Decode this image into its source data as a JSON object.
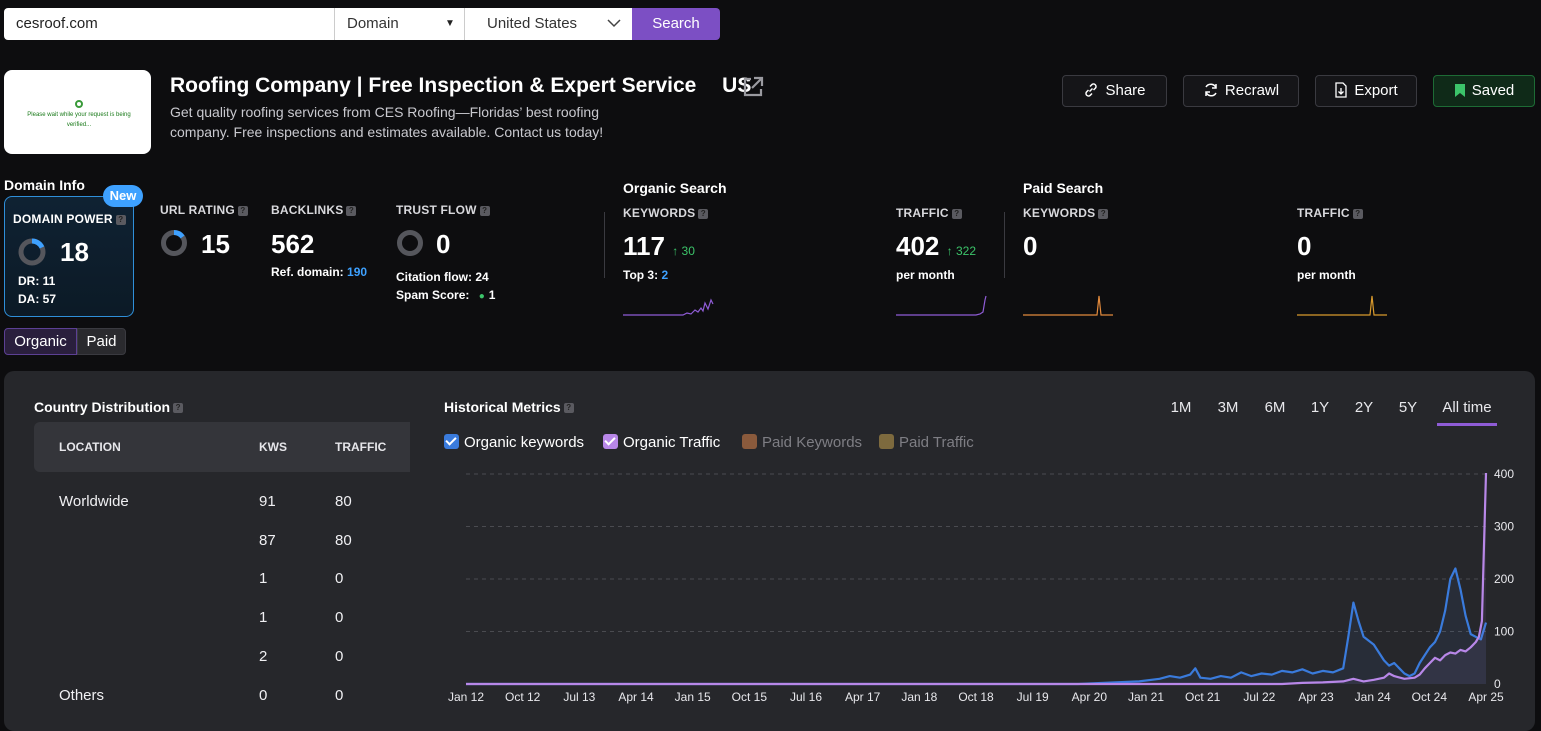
{
  "search": {
    "query": "cesroof.com",
    "mode": "Domain",
    "country": "United States",
    "button": "Search"
  },
  "site": {
    "title": "Roofing Company | Free Inspection & Expert Service",
    "country_code": "US",
    "description": "Get quality roofing services from CES Roofing—Floridas’ best roofing company. Free inspections and estimates available. Contact us today!",
    "thumbnail_text": "Please wait while your request is being verified..."
  },
  "actions": {
    "share": "Share",
    "recrawl": "Recrawl",
    "export": "Export",
    "saved": "Saved"
  },
  "domain_info": {
    "heading": "Domain Info",
    "badge": "New",
    "domain_power_label": "DOMAIN POWER",
    "domain_power": "18",
    "domain_power_fraction": 0.18,
    "dr": "DR: 11",
    "da": "DA: 57",
    "url_rating_label": "URL RATING",
    "url_rating": "15",
    "url_rating_fraction": 0.15,
    "backlinks_label": "BACKLINKS",
    "backlinks": "562",
    "ref_domain_label": "Ref. domain:",
    "ref_domain": "190",
    "trust_flow_label": "TRUST FLOW",
    "trust_flow": "0",
    "citation_flow": "Citation flow: 24",
    "spam_score_label": "Spam Score:",
    "spam_score": "1"
  },
  "organic": {
    "heading": "Organic Search",
    "keywords_label": "KEYWORDS",
    "keywords": "117",
    "keywords_delta": "30",
    "top3_label": "Top 3:",
    "top3": "2",
    "traffic_label": "TRAFFIC",
    "traffic": "402",
    "traffic_delta": "322",
    "per_month": "per month"
  },
  "paid": {
    "heading": "Paid Search",
    "keywords_label": "KEYWORDS",
    "keywords": "0",
    "traffic_label": "TRAFFIC",
    "traffic": "0",
    "per_month": "per month"
  },
  "toggle": {
    "organic": "Organic",
    "paid": "Paid"
  },
  "country_distribution": {
    "heading": "Country Distribution",
    "columns": [
      "LOCATION",
      "KWS",
      "TRAFFIC"
    ],
    "rows": [
      {
        "location": "Worldwide",
        "kws": "91",
        "traffic": "80"
      },
      {
        "location": "",
        "kws": "87",
        "traffic": "80"
      },
      {
        "location": "",
        "kws": "1",
        "traffic": "0"
      },
      {
        "location": "",
        "kws": "1",
        "traffic": "0"
      },
      {
        "location": "",
        "kws": "2",
        "traffic": "0"
      },
      {
        "location": "Others",
        "kws": "0",
        "traffic": "0"
      }
    ]
  },
  "historical": {
    "heading": "Historical Metrics",
    "ranges": [
      "1M",
      "3M",
      "6M",
      "1Y",
      "2Y",
      "5Y",
      "All time"
    ],
    "active_range": "All time",
    "legend": [
      {
        "label": "Organic keywords",
        "checked": true,
        "color": "#3a7bdc"
      },
      {
        "label": "Organic Traffic",
        "checked": true,
        "color": "#b887e8"
      },
      {
        "label": "Paid Keywords",
        "checked": false,
        "color": "#8a5a3c"
      },
      {
        "label": "Paid Traffic",
        "checked": false,
        "color": "#7d6a3e"
      }
    ]
  },
  "chart_data": {
    "type": "line",
    "x_ticks": [
      "Jan 12",
      "Oct 12",
      "Jul 13",
      "Apr 14",
      "Jan 15",
      "Oct 15",
      "Jul 16",
      "Apr 17",
      "Jan 18",
      "Oct 18",
      "Jul 19",
      "Apr 20",
      "Jan 21",
      "Oct 21",
      "Jul 22",
      "Apr 23",
      "Jan 24",
      "Oct 24",
      "Apr 25"
    ],
    "y_ticks": [
      "0",
      "100",
      "200",
      "300",
      "400"
    ],
    "ylim": [
      0,
      400
    ],
    "grid": true,
    "series": [
      {
        "name": "Organic keywords",
        "color": "#3a7bdc",
        "points": [
          [
            0,
            0
          ],
          [
            0.6,
            0
          ],
          [
            0.66,
            5
          ],
          [
            0.68,
            10
          ],
          [
            0.69,
            15
          ],
          [
            0.7,
            12
          ],
          [
            0.71,
            18
          ],
          [
            0.715,
            30
          ],
          [
            0.72,
            12
          ],
          [
            0.73,
            10
          ],
          [
            0.74,
            15
          ],
          [
            0.75,
            12
          ],
          [
            0.76,
            22
          ],
          [
            0.77,
            15
          ],
          [
            0.78,
            20
          ],
          [
            0.79,
            18
          ],
          [
            0.8,
            25
          ],
          [
            0.81,
            22
          ],
          [
            0.82,
            28
          ],
          [
            0.83,
            20
          ],
          [
            0.84,
            25
          ],
          [
            0.85,
            22
          ],
          [
            0.86,
            30
          ],
          [
            0.865,
            90
          ],
          [
            0.87,
            155
          ],
          [
            0.875,
            120
          ],
          [
            0.88,
            90
          ],
          [
            0.89,
            75
          ],
          [
            0.895,
            60
          ],
          [
            0.9,
            45
          ],
          [
            0.905,
            35
          ],
          [
            0.91,
            40
          ],
          [
            0.915,
            30
          ],
          [
            0.92,
            20
          ],
          [
            0.925,
            15
          ],
          [
            0.93,
            20
          ],
          [
            0.935,
            40
          ],
          [
            0.94,
            55
          ],
          [
            0.945,
            70
          ],
          [
            0.95,
            80
          ],
          [
            0.955,
            100
          ],
          [
            0.96,
            140
          ],
          [
            0.965,
            200
          ],
          [
            0.97,
            220
          ],
          [
            0.975,
            180
          ],
          [
            0.98,
            130
          ],
          [
            0.985,
            95
          ],
          [
            0.99,
            90
          ],
          [
            0.995,
            85
          ],
          [
            1,
            117
          ]
        ]
      },
      {
        "name": "Organic Traffic",
        "color": "#b887e8",
        "points": [
          [
            0,
            0
          ],
          [
            0.8,
            0
          ],
          [
            0.82,
            2
          ],
          [
            0.84,
            3
          ],
          [
            0.86,
            5
          ],
          [
            0.87,
            10
          ],
          [
            0.88,
            5
          ],
          [
            0.89,
            8
          ],
          [
            0.9,
            12
          ],
          [
            0.905,
            20
          ],
          [
            0.91,
            15
          ],
          [
            0.92,
            10
          ],
          [
            0.93,
            12
          ],
          [
            0.935,
            18
          ],
          [
            0.94,
            30
          ],
          [
            0.945,
            40
          ],
          [
            0.95,
            50
          ],
          [
            0.955,
            45
          ],
          [
            0.96,
            55
          ],
          [
            0.965,
            60
          ],
          [
            0.97,
            58
          ],
          [
            0.975,
            65
          ],
          [
            0.98,
            62
          ],
          [
            0.985,
            70
          ],
          [
            0.99,
            80
          ],
          [
            0.993,
            90
          ],
          [
            0.996,
            120
          ],
          [
            1,
            402
          ]
        ]
      }
    ]
  }
}
